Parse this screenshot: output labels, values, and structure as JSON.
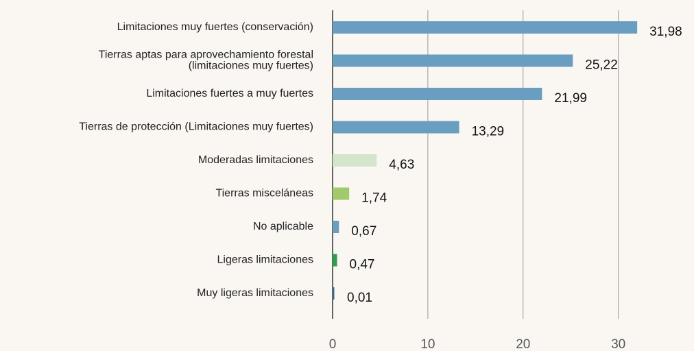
{
  "chart_data": {
    "type": "barh",
    "categories": [
      "Limitaciones muy fuertes (conservación)",
      [
        "Tierras aptas para aprovechamiento forestal",
        "(limitaciones muy fuertes)"
      ],
      "Limitaciones fuertes a muy fuertes",
      "Tierras de protección (Limitaciones muy fuertes)",
      "Moderadas limitaciones",
      "Tierras misceláneas",
      "No aplicable",
      "Ligeras limitaciones",
      "Muy ligeras limitaciones"
    ],
    "values": [
      31.98,
      25.22,
      21.99,
      13.29,
      4.63,
      1.74,
      0.67,
      0.47,
      0.01
    ],
    "value_labels": [
      "31,98",
      "25,22",
      "21,99",
      "13,29",
      "4,63",
      "1,74",
      "0,67",
      "0,47",
      "0,01"
    ],
    "colors": [
      "#6a9ec0",
      "#6a9ec0",
      "#6a9ec0",
      "#6a9ec0",
      "#d3e6cb",
      "#a2c96a",
      "#6a9ec0",
      "#2f9e4f",
      "#3a6e90"
    ],
    "xlim": [
      0,
      36
    ],
    "xticks": [
      0,
      10,
      20,
      30
    ],
    "grid": true
  }
}
